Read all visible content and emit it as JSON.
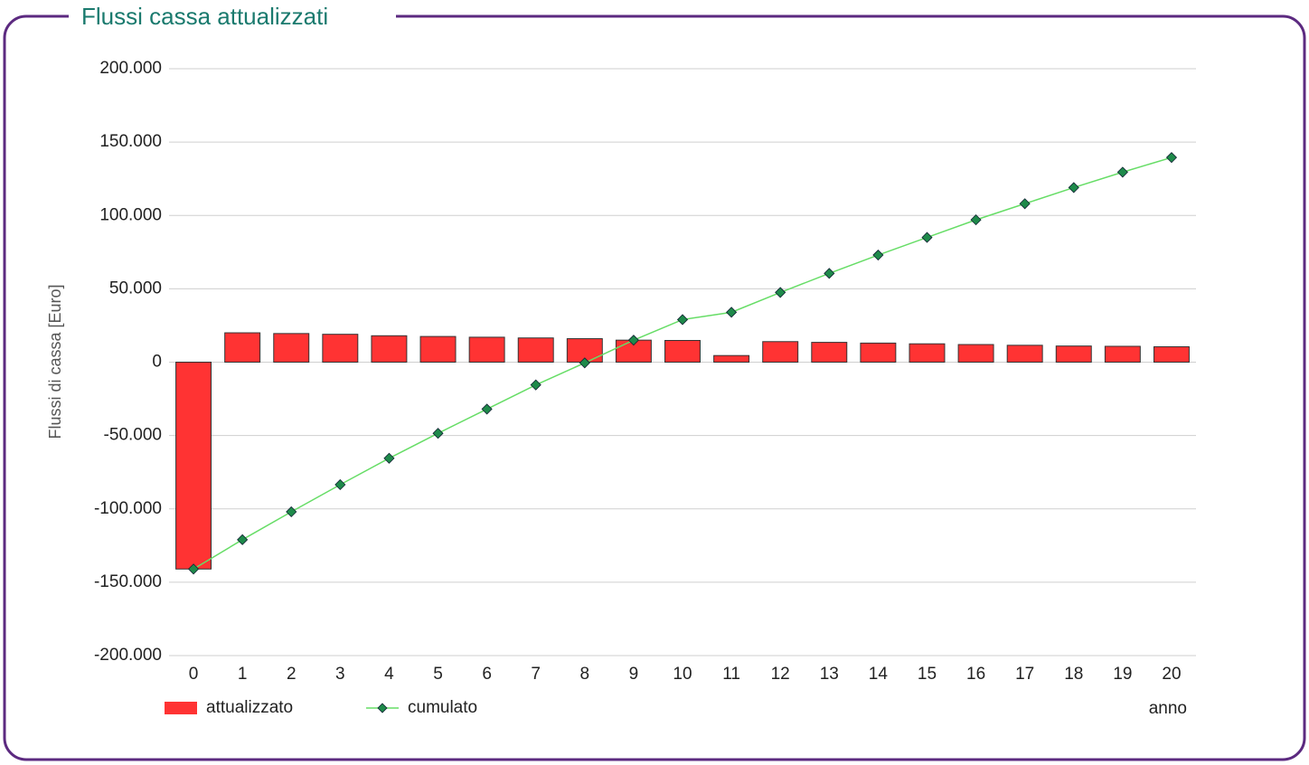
{
  "panel_title": "Flussi cassa attualizzati",
  "chart_data": {
    "type": "bar",
    "y_label": "Flussi di cassa [Euro]",
    "x_label": "anno",
    "categories": [
      "0",
      "1",
      "2",
      "3",
      "4",
      "5",
      "6",
      "7",
      "8",
      "9",
      "10",
      "11",
      "12",
      "13",
      "14",
      "15",
      "16",
      "17",
      "18",
      "19",
      "20"
    ],
    "series": [
      {
        "name": "attualizzato",
        "type": "bar",
        "color": "#ff3333",
        "values": [
          -141000,
          20000,
          19500,
          19000,
          18000,
          17500,
          17000,
          16500,
          16000,
          15000,
          14800,
          4500,
          14000,
          13500,
          13000,
          12500,
          12000,
          11500,
          11000,
          10800,
          10500
        ]
      },
      {
        "name": "cumulato",
        "type": "line",
        "color": "#66dd66",
        "marker_color": "#1e8a4a",
        "values": [
          -141000,
          -121000,
          -102000,
          -83500,
          -65500,
          -48500,
          -32000,
          -15500,
          -500,
          15000,
          29000,
          34000,
          47500,
          60500,
          73000,
          85000,
          97000,
          108000,
          119000,
          129500,
          139500
        ]
      }
    ],
    "ylim": [
      -200000,
      200000
    ],
    "yticks": [
      {
        "value": -200000,
        "label": "-200.000"
      },
      {
        "value": -150000,
        "label": "-150.000"
      },
      {
        "value": -100000,
        "label": "-100.000"
      },
      {
        "value": -50000,
        "label": "-50.000"
      },
      0,
      {
        "value": 50000,
        "label": "50.000"
      },
      {
        "value": 100000,
        "label": "100.000"
      },
      {
        "value": 150000,
        "label": "150.000"
      },
      {
        "value": 200000,
        "label": "200.000"
      }
    ],
    "grid": true
  }
}
